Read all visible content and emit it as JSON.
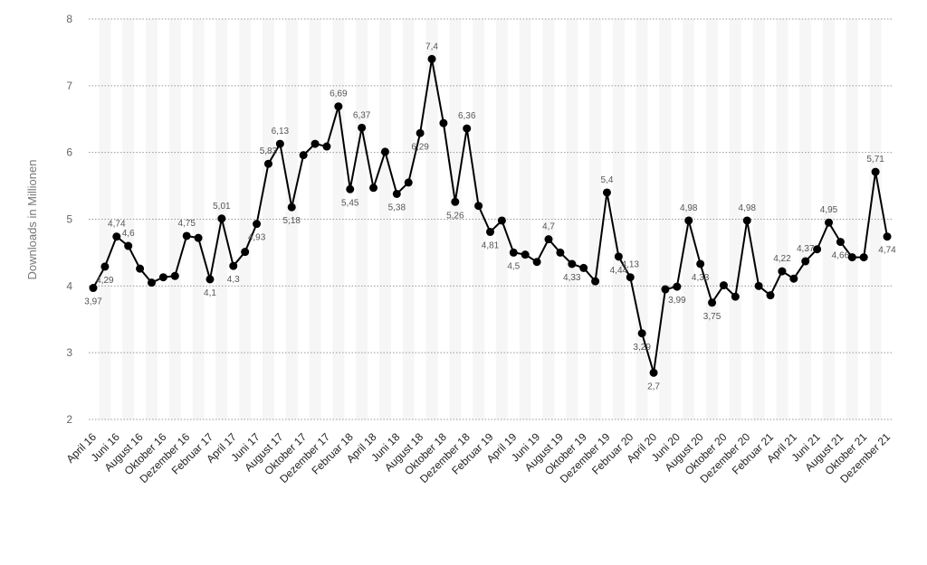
{
  "chart_data": {
    "type": "line",
    "y_label": "Downloads in Millionen",
    "categories": [
      "April 16",
      null,
      "Juni 16",
      null,
      "August 16",
      null,
      "Oktober 16",
      null,
      "Dezember 16",
      null,
      "Februar 17",
      null,
      "April 17",
      null,
      "Juni 17",
      null,
      "August 17",
      null,
      "Oktober 17",
      null,
      "Dezember 17",
      null,
      "Februar 18",
      null,
      "April 18",
      null,
      "Juni 18",
      null,
      "August 18",
      null,
      "Oktober 18",
      null,
      "Dezember 18",
      null,
      "Februar 19",
      null,
      "April 19",
      null,
      "Juni 19",
      null,
      "August 19",
      null,
      "Oktober 19",
      null,
      "Dezember 19",
      null,
      "Februar 20",
      null,
      "April 20",
      null,
      "Juni 20",
      null,
      "August 20",
      null,
      "Oktober 20",
      null,
      "Dezember 20",
      null,
      "Februar 21",
      null,
      "April 21",
      null,
      "Juni 21",
      null,
      "August 21",
      null,
      "Oktober 21",
      null,
      "Dezember 21"
    ],
    "values": [
      3.97,
      4.29,
      4.74,
      4.6,
      4.26,
      4.05,
      4.13,
      4.15,
      4.75,
      4.72,
      4.1,
      5.01,
      4.3,
      4.51,
      4.93,
      5.83,
      6.13,
      5.18,
      5.96,
      6.13,
      6.09,
      6.69,
      5.45,
      6.37,
      5.47,
      6.01,
      5.38,
      5.55,
      6.29,
      7.4,
      6.44,
      5.26,
      6.36,
      5.2,
      4.81,
      4.98,
      4.5,
      4.47,
      4.36,
      4.7,
      4.5,
      4.33,
      4.27,
      4.07,
      5.4,
      4.44,
      4.13,
      3.29,
      2.7,
      3.95,
      3.99,
      4.98,
      4.33,
      3.75,
      4.01,
      3.84,
      4.98,
      4.0,
      3.86,
      4.22,
      4.11,
      4.37,
      4.55,
      4.95,
      4.66,
      4.43,
      4.43,
      5.71,
      4.74
    ],
    "value_labels": [
      "3,97",
      "4,29",
      "4,74",
      "4,6",
      null,
      null,
      null,
      null,
      "4,75",
      null,
      "4,1",
      "5,01",
      "4,3",
      null,
      "4,93",
      "5,83",
      "6,13",
      "5,18",
      null,
      null,
      null,
      "6,69",
      "5,45",
      "6,37",
      null,
      null,
      "5,38",
      null,
      "6,29",
      "7,4",
      null,
      "5,26",
      "6,36",
      null,
      "4,81",
      null,
      "4,5",
      null,
      null,
      "4,7",
      null,
      "4,33",
      null,
      null,
      "5,4",
      "4,44",
      "4,13",
      "3,29",
      "2,7",
      null,
      "3,99",
      "4,98",
      "4,33",
      "3,75",
      null,
      null,
      "4,98",
      null,
      null,
      "4,22",
      null,
      "4,37",
      null,
      "4,95",
      "4,66",
      null,
      null,
      "5,71",
      "4,74"
    ],
    "color": "#000000",
    "ylim": [
      2,
      8
    ],
    "yticks": [
      2,
      3,
      4,
      5,
      6,
      7,
      8
    ],
    "grid": true
  }
}
